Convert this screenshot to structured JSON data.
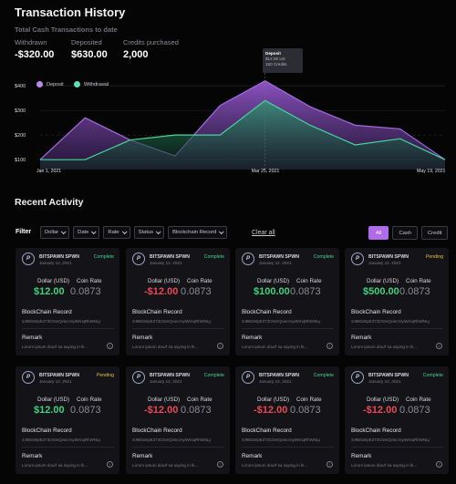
{
  "header": {
    "title": "Transaction History",
    "subtitle": "Total Cash Transactions to date"
  },
  "stats": [
    {
      "label": "Withdrawn",
      "value": "-$320.00"
    },
    {
      "label": "Deposited",
      "value": "$630.00"
    },
    {
      "label": "Credits purchased",
      "value": "2,000"
    }
  ],
  "legend": {
    "deposit": "Deposit",
    "withdrawal": "Withdrawal",
    "deposit_color": "#9b5bd6",
    "withdrawal_color": "#3fd19a"
  },
  "tooltip": {
    "title": "Deposit",
    "line1": "$12.00 US",
    "line2": "150 Credits"
  },
  "chart_data": {
    "type": "area",
    "x": [
      "Jan 1, 2021",
      "Jan 20",
      "Feb 8",
      "Feb 27",
      "Mar 10",
      "Mar 25, 2021",
      "Apr 8",
      "Apr 25",
      "May 5",
      "May 19, 2021"
    ],
    "x_tick_labels": [
      "Jan 1, 2021",
      "Mar 25, 2021",
      "May 19, 2021"
    ],
    "y_ticks": [
      100,
      200,
      300,
      400
    ],
    "y_tick_labels": [
      "$100",
      "$200",
      "$300",
      "$400"
    ],
    "ylim": [
      60,
      430
    ],
    "grid": true,
    "series": [
      {
        "name": "Deposit",
        "color": "#9b5bd6",
        "values": [
          100,
          270,
          180,
          115,
          320,
          420,
          315,
          240,
          225,
          100
        ]
      },
      {
        "name": "Withdrawal",
        "color": "#3fd19a",
        "values": [
          100,
          100,
          180,
          200,
          200,
          340,
          240,
          160,
          185,
          100
        ]
      }
    ]
  },
  "recent": {
    "title": "Recent Activity",
    "filter_label": "Filter",
    "filters": [
      "Dollar",
      "Date",
      "Rate",
      "Status",
      "Blockchain Record"
    ],
    "clear_all": "Clear all",
    "segments": [
      "All",
      "Cash",
      "Credit"
    ]
  },
  "card_labels": {
    "dollar": "Dollar (USD)",
    "coin": "Coin Rate",
    "blockchain": "BlockChain Record",
    "remark": "Remark",
    "info": "i",
    "logo": "P"
  },
  "cards": [
    {
      "name": "BITSPAWN SPWN",
      "date": "January 12, 2021",
      "status": "Complete",
      "status_type": "complete",
      "amount": "$12.00",
      "sign": "pos",
      "rate": "0.0873",
      "record": "3J98t1WpEZ73CNmQviecrnyiWrnqRhWNLy",
      "remark": "Lorum ipsum dourf sa saying in lk..."
    },
    {
      "name": "BITSPAWN SPWN",
      "date": "January 12, 2021",
      "status": "Complete",
      "status_type": "complete",
      "amount": "-$12.00",
      "sign": "neg",
      "rate": "0.0873",
      "record": "3J98t1WpEZ73CNmQviecrnyiWrnqRhWNLy",
      "remark": "Lorum ipsum dourf sa saying in lk..."
    },
    {
      "name": "BITSPAWN SPWN",
      "date": "January 12, 2021",
      "status": "Complete",
      "status_type": "complete",
      "amount": "$100.00",
      "sign": "pos",
      "rate": "0.0873",
      "record": "3J98t1WpEZ73CNmQviecrnyiWrnqRhWNLy",
      "remark": "Lorum ipsum dourf sa saying in lk..."
    },
    {
      "name": "BITSPAWN SPWN",
      "date": "January 12, 2021",
      "status": "Pending",
      "status_type": "pending",
      "amount": "$500.00",
      "sign": "pos",
      "rate": "0.0873",
      "record": "3J98t1WpEZ73CNmQviecrnyiWrnqRhWNLy",
      "remark": "Lorum ipsum dourf sa saying in lk..."
    },
    {
      "name": "BITSPAWN SPWN",
      "date": "January 12, 2021",
      "status": "Pending",
      "status_type": "pending",
      "amount": "$12.00",
      "sign": "pos",
      "rate": "0.0873",
      "record": "3J98t1WpEZ73CNmQviecrnyiWrnqRhWNLy",
      "remark": "Lorum ipsum dourf sa saying in lk..."
    },
    {
      "name": "BITSPAWN SPWN",
      "date": "January 12, 2021",
      "status": "Complete",
      "status_type": "complete",
      "amount": "-$12.00",
      "sign": "neg",
      "rate": "0.0873",
      "record": "3J98t1WpEZ73CNmQviecrnyiWrnqRhWNLy",
      "remark": "Lorum ipsum dourf sa saying in lk..."
    },
    {
      "name": "BITSPAWN SPWN",
      "date": "January 12, 2021",
      "status": "Complete",
      "status_type": "complete",
      "amount": "-$12.00",
      "sign": "neg",
      "rate": "0.0873",
      "record": "3J98t1WpEZ73CNmQviecrnyiWrnqRhWNLy",
      "remark": "Lorum ipsum dourf sa saying in lk..."
    },
    {
      "name": "BITSPAWN SPWN",
      "date": "January 12, 2021",
      "status": "Complete",
      "status_type": "complete",
      "amount": "-$12.00",
      "sign": "neg",
      "rate": "0.0873",
      "record": "3J98t1WpEZ73CNmQviecrnyiWrnqRhWNLy",
      "remark": "Lorum ipsum dourf sa saying in lk..."
    }
  ]
}
